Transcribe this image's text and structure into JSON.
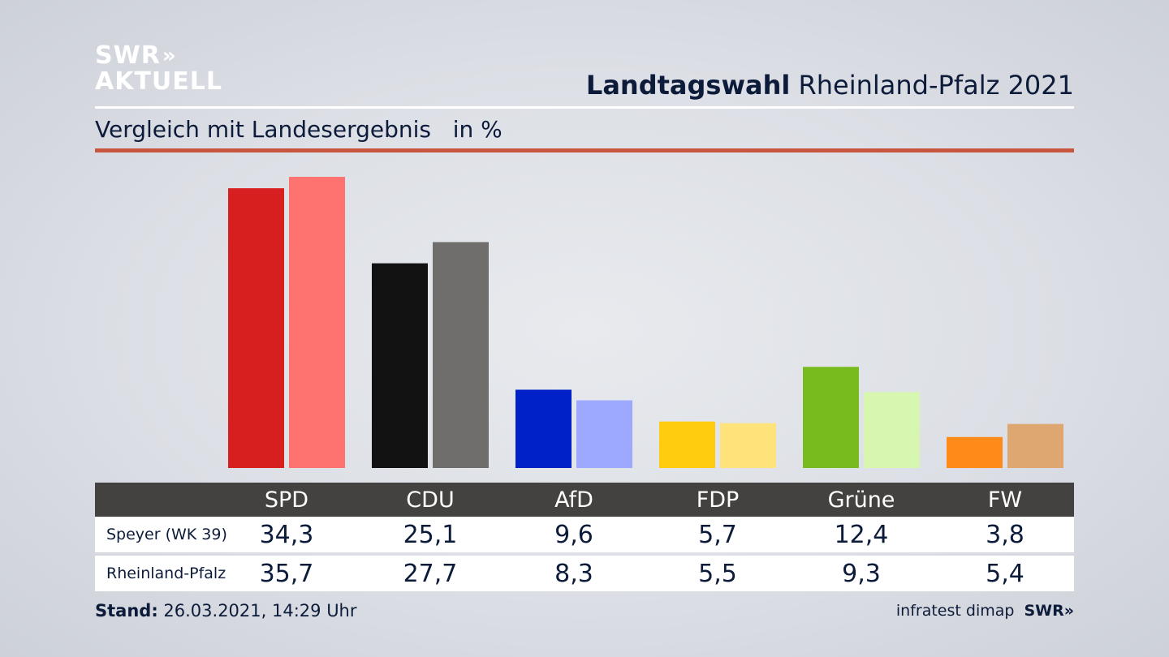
{
  "logo": {
    "line1": "SWR",
    "chevrons": "»",
    "line2": "AKTUELL"
  },
  "header": {
    "title_bold": "Landtagswahl",
    "title_rest": "Rheinland-Pfalz 2021"
  },
  "subtitle": {
    "text": "Vergleich mit Landesergebnis",
    "unit": "in %"
  },
  "colors": {
    "accent_rule": "#c8553d",
    "table_header": "#434240",
    "text": "#0d1b3a"
  },
  "chart_data": {
    "type": "bar",
    "title": "Vergleich mit Landesergebnis",
    "unit": "in %",
    "categories": [
      "SPD",
      "CDU",
      "AfD",
      "FDP",
      "Grüne",
      "FW"
    ],
    "series": [
      {
        "name": "Speyer (WK 39)",
        "values": [
          34.3,
          25.1,
          9.6,
          5.7,
          12.4,
          3.8
        ],
        "labels": [
          "34,3",
          "25,1",
          "9,6",
          "5,7",
          "12,4",
          "3,8"
        ],
        "colors": [
          "#d71f20",
          "#121212",
          "#0020c8",
          "#ffcc10",
          "#78bb1f",
          "#fd8a19"
        ]
      },
      {
        "name": "Rheinland-Pfalz",
        "values": [
          35.7,
          27.7,
          8.3,
          5.5,
          9.3,
          5.4
        ],
        "labels": [
          "35,7",
          "27,7",
          "8,3",
          "5,5",
          "9,3",
          "5,4"
        ],
        "colors": [
          "#fe7370",
          "#706e6c",
          "#9ca9ff",
          "#fde37a",
          "#d7f6b0",
          "#dea772"
        ]
      }
    ],
    "ylim": [
      0,
      36
    ]
  },
  "footer": {
    "stand_label": "Stand:",
    "stand_value": "26.03.2021, 14:29 Uhr",
    "source": "infratest dimap",
    "brand": "SWR",
    "brand_chevrons": "»"
  }
}
